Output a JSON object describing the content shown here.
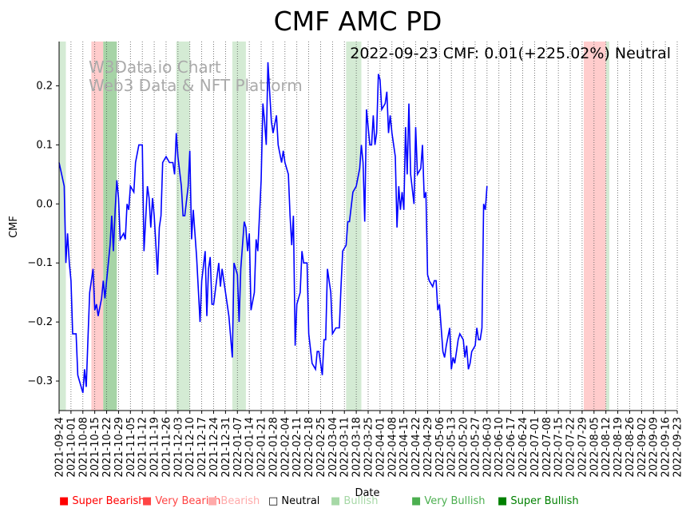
{
  "chart_data": {
    "type": "line",
    "title": "CMF AMC PD",
    "annotation": "2022-09-23 CMF: 0.01(+225.02%) Neutral",
    "watermark": [
      "W3Data.io Chart",
      "Web3 Data & NFT Platform"
    ],
    "xlabel": "Date",
    "ylabel": "CMF",
    "ylim": [
      -0.35,
      0.275
    ],
    "yticks": [
      -0.3,
      -0.2,
      -0.1,
      0.0,
      0.1,
      0.2
    ],
    "ytick_labels": [
      "−0.3",
      "−0.2",
      "−0.1",
      "0.0",
      "0.1",
      "0.2"
    ],
    "xlim": [
      "2021-09-24",
      "2022-09-23"
    ],
    "xticks": [
      "2021-09-24",
      "2021-10-01",
      "2021-10-08",
      "2021-10-15",
      "2021-10-22",
      "2021-10-29",
      "2021-11-05",
      "2021-11-12",
      "2021-11-19",
      "2021-11-26",
      "2021-12-03",
      "2021-12-10",
      "2021-12-17",
      "2021-12-24",
      "2021-12-31",
      "2022-01-07",
      "2022-01-14",
      "2022-01-21",
      "2022-01-28",
      "2022-02-04",
      "2022-02-11",
      "2022-02-18",
      "2022-02-25",
      "2022-03-04",
      "2022-03-11",
      "2022-03-18",
      "2022-03-25",
      "2022-04-01",
      "2022-04-08",
      "2022-04-15",
      "2022-04-22",
      "2022-04-29",
      "2022-05-06",
      "2022-05-13",
      "2022-05-20",
      "2022-05-27",
      "2022-06-03",
      "2022-06-10",
      "2022-06-17",
      "2022-06-24",
      "2022-07-01",
      "2022-07-08",
      "2022-07-15",
      "2022-07-22",
      "2022-07-29",
      "2022-08-05",
      "2022-08-12",
      "2022-08-19",
      "2022-08-26",
      "2022-09-02",
      "2022-09-09",
      "2022-09-16",
      "2022-09-23"
    ],
    "grid": "vertical dotted",
    "series": [
      {
        "color": "#0000ff",
        "points": [
          [
            "2021-09-24",
            0.07
          ],
          [
            "2021-09-27",
            0.03
          ],
          [
            "2021-09-28",
            -0.1
          ],
          [
            "2021-09-29",
            -0.05
          ],
          [
            "2021-09-30",
            -0.1
          ],
          [
            "2021-10-01",
            -0.13
          ],
          [
            "2021-10-02",
            -0.22
          ],
          [
            "2021-10-04",
            -0.22
          ],
          [
            "2021-10-05",
            -0.29
          ],
          [
            "2021-10-06",
            -0.3
          ],
          [
            "2021-10-08",
            -0.32
          ],
          [
            "2021-10-09",
            -0.28
          ],
          [
            "2021-10-10",
            -0.31
          ],
          [
            "2021-10-11",
            -0.23
          ],
          [
            "2021-10-12",
            -0.15
          ],
          [
            "2021-10-14",
            -0.11
          ],
          [
            "2021-10-15",
            -0.18
          ],
          [
            "2021-10-16",
            -0.17
          ],
          [
            "2021-10-17",
            -0.19
          ],
          [
            "2021-10-19",
            -0.16
          ],
          [
            "2021-10-20",
            -0.13
          ],
          [
            "2021-10-21",
            -0.16
          ],
          [
            "2021-10-22",
            -0.13
          ],
          [
            "2021-10-24",
            -0.07
          ],
          [
            "2021-10-25",
            -0.02
          ],
          [
            "2021-10-26",
            -0.08
          ],
          [
            "2021-10-27",
            -0.01
          ],
          [
            "2021-10-28",
            0.04
          ],
          [
            "2021-10-29",
            0.01
          ],
          [
            "2021-10-30",
            -0.06
          ],
          [
            "2021-11-01",
            -0.05
          ],
          [
            "2021-11-02",
            -0.06
          ],
          [
            "2021-11-03",
            0.0
          ],
          [
            "2021-11-04",
            -0.01
          ],
          [
            "2021-11-05",
            0.03
          ],
          [
            "2021-11-07",
            0.02
          ],
          [
            "2021-11-08",
            0.07
          ],
          [
            "2021-11-10",
            0.1
          ],
          [
            "2021-11-12",
            0.1
          ],
          [
            "2021-11-13",
            -0.08
          ],
          [
            "2021-11-15",
            0.03
          ],
          [
            "2021-11-16",
            0.01
          ],
          [
            "2021-11-17",
            -0.04
          ],
          [
            "2021-11-18",
            0.01
          ],
          [
            "2021-11-19",
            -0.02
          ],
          [
            "2021-11-21",
            -0.12
          ],
          [
            "2021-11-22",
            -0.04
          ],
          [
            "2021-11-23",
            -0.02
          ],
          [
            "2021-11-24",
            0.07
          ],
          [
            "2021-11-26",
            0.08
          ],
          [
            "2021-11-28",
            0.07
          ],
          [
            "2021-11-30",
            0.07
          ],
          [
            "2021-12-01",
            0.05
          ],
          [
            "2021-12-02",
            0.12
          ],
          [
            "2021-12-03",
            0.08
          ],
          [
            "2021-12-05",
            0.03
          ],
          [
            "2021-12-06",
            -0.02
          ],
          [
            "2021-12-07",
            -0.02
          ],
          [
            "2021-12-09",
            0.03
          ],
          [
            "2021-12-10",
            0.09
          ],
          [
            "2021-12-11",
            -0.06
          ],
          [
            "2021-12-12",
            -0.01
          ],
          [
            "2021-12-14",
            -0.09
          ],
          [
            "2021-12-16",
            -0.2
          ],
          [
            "2021-12-17",
            -0.13
          ],
          [
            "2021-12-19",
            -0.08
          ],
          [
            "2021-12-20",
            -0.19
          ],
          [
            "2021-12-21",
            -0.11
          ],
          [
            "2021-12-22",
            -0.09
          ],
          [
            "2021-12-23",
            -0.17
          ],
          [
            "2021-12-24",
            -0.17
          ],
          [
            "2021-12-27",
            -0.1
          ],
          [
            "2021-12-28",
            -0.14
          ],
          [
            "2021-12-29",
            -0.11
          ],
          [
            "2021-12-31",
            -0.15
          ],
          [
            "2022-01-02",
            -0.19
          ],
          [
            "2022-01-04",
            -0.26
          ],
          [
            "2022-01-05",
            -0.1
          ],
          [
            "2022-01-07",
            -0.12
          ],
          [
            "2022-01-08",
            -0.2
          ],
          [
            "2022-01-09",
            -0.11
          ],
          [
            "2022-01-11",
            -0.03
          ],
          [
            "2022-01-12",
            -0.04
          ],
          [
            "2022-01-13",
            -0.08
          ],
          [
            "2022-01-14",
            -0.05
          ],
          [
            "2022-01-15",
            -0.18
          ],
          [
            "2022-01-17",
            -0.15
          ],
          [
            "2022-01-18",
            -0.06
          ],
          [
            "2022-01-19",
            -0.08
          ],
          [
            "2022-01-21",
            0.04
          ],
          [
            "2022-01-22",
            0.17
          ],
          [
            "2022-01-23",
            0.14
          ],
          [
            "2022-01-24",
            0.1
          ],
          [
            "2022-01-25",
            0.24
          ],
          [
            "2022-01-27",
            0.14
          ],
          [
            "2022-01-28",
            0.12
          ],
          [
            "2022-01-30",
            0.15
          ],
          [
            "2022-01-31",
            0.1
          ],
          [
            "2022-02-02",
            0.07
          ],
          [
            "2022-02-03",
            0.09
          ],
          [
            "2022-02-04",
            0.07
          ],
          [
            "2022-02-06",
            0.05
          ],
          [
            "2022-02-07",
            -0.02
          ],
          [
            "2022-02-08",
            -0.07
          ],
          [
            "2022-02-09",
            -0.02
          ],
          [
            "2022-02-10",
            -0.24
          ],
          [
            "2022-02-11",
            -0.17
          ],
          [
            "2022-02-13",
            -0.15
          ],
          [
            "2022-02-14",
            -0.08
          ],
          [
            "2022-02-15",
            -0.1
          ],
          [
            "2022-02-17",
            -0.1
          ],
          [
            "2022-02-18",
            -0.22
          ],
          [
            "2022-02-20",
            -0.27
          ],
          [
            "2022-02-22",
            -0.28
          ],
          [
            "2022-02-23",
            -0.25
          ],
          [
            "2022-02-24",
            -0.25
          ],
          [
            "2022-02-26",
            -0.29
          ],
          [
            "2022-02-27",
            -0.23
          ],
          [
            "2022-02-28",
            -0.23
          ],
          [
            "2022-03-01",
            -0.11
          ],
          [
            "2022-03-03",
            -0.15
          ],
          [
            "2022-03-04",
            -0.22
          ],
          [
            "2022-03-06",
            -0.21
          ],
          [
            "2022-03-08",
            -0.21
          ],
          [
            "2022-03-09",
            -0.14
          ],
          [
            "2022-03-10",
            -0.08
          ],
          [
            "2022-03-12",
            -0.07
          ],
          [
            "2022-03-13",
            -0.03
          ],
          [
            "2022-03-14",
            -0.03
          ],
          [
            "2022-03-16",
            0.02
          ],
          [
            "2022-03-18",
            0.03
          ],
          [
            "2022-03-20",
            0.06
          ],
          [
            "2022-03-21",
            0.1
          ],
          [
            "2022-03-22",
            0.07
          ],
          [
            "2022-03-23",
            -0.03
          ],
          [
            "2022-03-24",
            0.16
          ],
          [
            "2022-03-26",
            0.1
          ],
          [
            "2022-03-27",
            0.1
          ],
          [
            "2022-03-28",
            0.15
          ],
          [
            "2022-03-29",
            0.1
          ],
          [
            "2022-03-30",
            0.12
          ],
          [
            "2022-03-31",
            0.22
          ],
          [
            "2022-04-01",
            0.21
          ],
          [
            "2022-04-02",
            0.16
          ],
          [
            "2022-04-04",
            0.17
          ],
          [
            "2022-04-05",
            0.19
          ],
          [
            "2022-04-06",
            0.12
          ],
          [
            "2022-04-07",
            0.15
          ],
          [
            "2022-04-08",
            0.12
          ],
          [
            "2022-04-10",
            0.08
          ],
          [
            "2022-04-11",
            -0.04
          ],
          [
            "2022-04-12",
            0.03
          ],
          [
            "2022-04-13",
            -0.01
          ],
          [
            "2022-04-14",
            0.02
          ],
          [
            "2022-04-15",
            -0.01
          ],
          [
            "2022-04-16",
            0.13
          ],
          [
            "2022-04-17",
            0.05
          ],
          [
            "2022-04-18",
            0.17
          ],
          [
            "2022-04-19",
            0.05
          ],
          [
            "2022-04-21",
            0.0
          ],
          [
            "2022-04-22",
            0.13
          ],
          [
            "2022-04-23",
            0.05
          ],
          [
            "2022-04-25",
            0.06
          ],
          [
            "2022-04-26",
            0.1
          ],
          [
            "2022-04-27",
            0.01
          ],
          [
            "2022-04-28",
            0.02
          ],
          [
            "2022-04-29",
            -0.12
          ],
          [
            "2022-04-30",
            -0.13
          ],
          [
            "2022-05-02",
            -0.14
          ],
          [
            "2022-05-03",
            -0.13
          ],
          [
            "2022-05-04",
            -0.13
          ],
          [
            "2022-05-05",
            -0.18
          ],
          [
            "2022-05-06",
            -0.17
          ],
          [
            "2022-05-08",
            -0.25
          ],
          [
            "2022-05-09",
            -0.26
          ],
          [
            "2022-05-10",
            -0.24
          ],
          [
            "2022-05-12",
            -0.21
          ],
          [
            "2022-05-13",
            -0.28
          ],
          [
            "2022-05-14",
            -0.26
          ],
          [
            "2022-05-15",
            -0.27
          ],
          [
            "2022-05-16",
            -0.25
          ],
          [
            "2022-05-17",
            -0.23
          ],
          [
            "2022-05-18",
            -0.22
          ],
          [
            "2022-05-20",
            -0.23
          ],
          [
            "2022-05-21",
            -0.26
          ],
          [
            "2022-05-22",
            -0.24
          ],
          [
            "2022-05-23",
            -0.28
          ],
          [
            "2022-05-24",
            -0.27
          ],
          [
            "2022-05-25",
            -0.25
          ],
          [
            "2022-05-27",
            -0.24
          ],
          [
            "2022-05-28",
            -0.21
          ],
          [
            "2022-05-29",
            -0.23
          ],
          [
            "2022-05-30",
            -0.23
          ],
          [
            "2022-05-31",
            -0.21
          ],
          [
            "2022-06-01",
            0.0
          ],
          [
            "2022-06-02",
            -0.01
          ],
          [
            "2022-06-03",
            0.03
          ]
        ]
      }
    ],
    "zones": [
      {
        "start": "2021-09-24",
        "end": "2021-09-28",
        "category": "Very Bullish"
      },
      {
        "start": "2021-10-13",
        "end": "2021-10-20",
        "category": "Very Bearish"
      },
      {
        "start": "2021-10-20",
        "end": "2021-10-28",
        "category": "Super Bullish"
      },
      {
        "start": "2021-12-02",
        "end": "2021-12-10",
        "category": "Very Bullish"
      },
      {
        "start": "2022-01-04",
        "end": "2022-01-12",
        "category": "Very Bullish"
      },
      {
        "start": "2022-03-12",
        "end": "2022-03-21",
        "category": "Very Bullish"
      },
      {
        "start": "2022-07-30",
        "end": "2022-08-12",
        "category": "Very Bearish"
      },
      {
        "start": "2022-08-12",
        "end": "2022-08-14",
        "category": "Very Bullish"
      }
    ],
    "legend": {
      "placement": "bottom",
      "items": [
        {
          "label": "Super Bearish",
          "color": "#ff0000",
          "opacity": 1.0
        },
        {
          "label": "Very Bearish",
          "color": "#ff4444",
          "opacity": 1.0
        },
        {
          "label": "Bearish",
          "color": "#ffaaaa",
          "opacity": 1.0
        },
        {
          "label": "Neutral",
          "color": "#000000",
          "opacity": 1.0,
          "hollow": true
        },
        {
          "label": "Bullish",
          "color": "#a6d8a6",
          "opacity": 1.0
        },
        {
          "label": "Very Bullish",
          "color": "#4caf50",
          "opacity": 1.0
        },
        {
          "label": "Super Bullish",
          "color": "#008000",
          "opacity": 1.0
        }
      ]
    }
  }
}
